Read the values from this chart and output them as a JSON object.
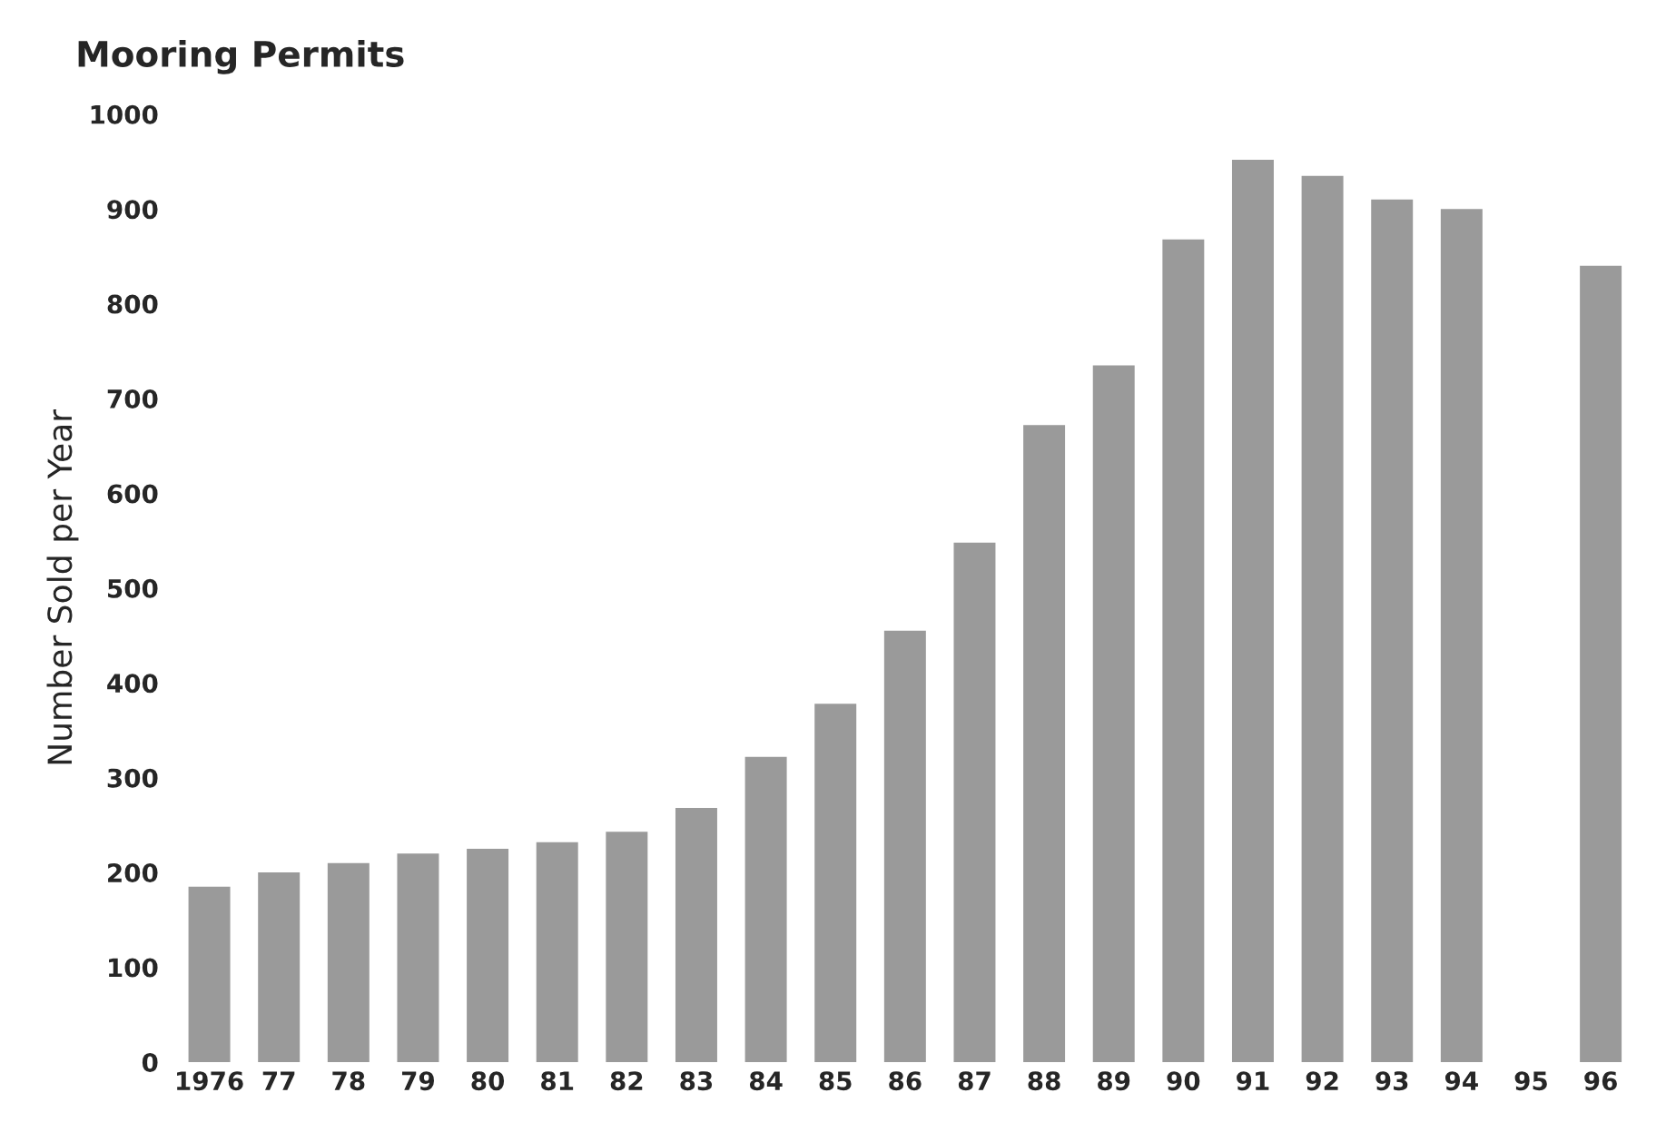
{
  "chart_data": {
    "type": "bar",
    "title": "Mooring Permits",
    "ylabel": "Number Sold per Year",
    "categories": [
      "1976",
      "77",
      "78",
      "79",
      "80",
      "81",
      "82",
      "83",
      "84",
      "85",
      "86",
      "87",
      "88",
      "89",
      "90",
      "91",
      "92",
      "93",
      "94",
      "95",
      "96"
    ],
    "values": [
      185,
      200,
      210,
      220,
      225,
      232,
      243,
      268,
      322,
      378,
      455,
      548,
      672,
      735,
      868,
      952,
      935,
      910,
      900,
      null,
      840
    ],
    "color": "#9a9a9a",
    "ylim": [
      0,
      1000
    ],
    "yticks": [
      0,
      100,
      200,
      300,
      400,
      500,
      600,
      700,
      800,
      900,
      1000
    ],
    "grid": false
  }
}
